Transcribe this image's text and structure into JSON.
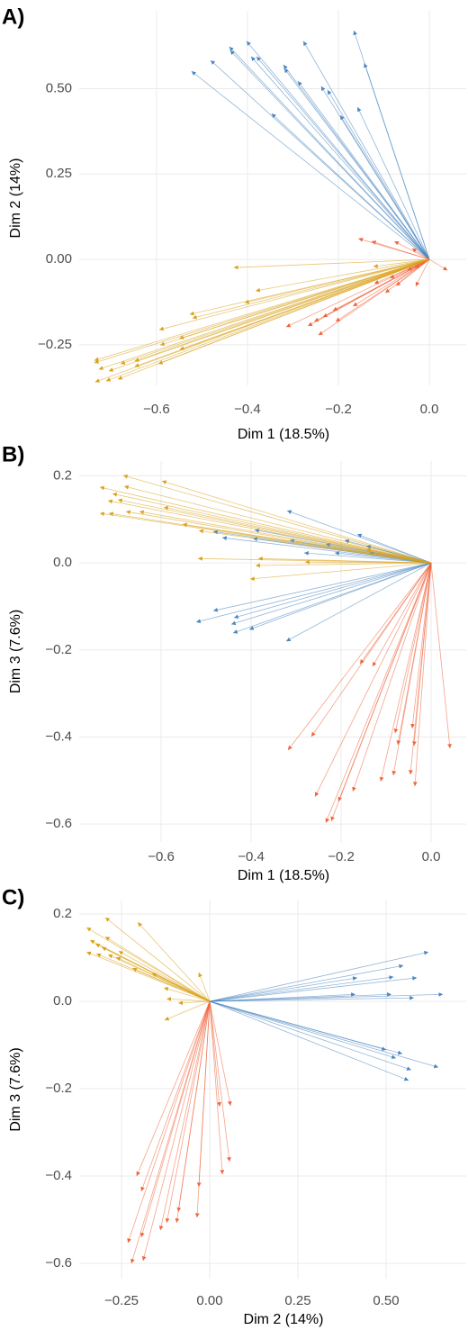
{
  "chart_data": [
    {
      "type": "arrow",
      "title": "A)",
      "x_label": "Dim 1 (18.5%)",
      "y_label": "Dim 2 (14%)",
      "xlim": [
        -0.77,
        0.081
      ],
      "ylim": [
        -0.369,
        0.728
      ],
      "xticks": [
        {
          "value": -0.6,
          "label": "−0.6"
        },
        {
          "value": -0.4,
          "label": "−0.4"
        },
        {
          "value": -0.2,
          "label": "−0.2"
        },
        {
          "value": 0,
          "label": "0.0"
        }
      ],
      "yticks": [
        {
          "value": -0.25,
          "label": "−0.25"
        },
        {
          "value": 0,
          "label": "0.00"
        },
        0.25,
        {
          "value": 0.5,
          "label": "0.50"
        }
      ],
      "grid": true,
      "series": [
        {
          "color": "#4a86c0",
          "x": [
            -0.523,
            -0.481,
            -0.44,
            -0.438,
            -0.402,
            -0.392,
            -0.38,
            -0.347,
            -0.321,
            -0.319,
            -0.277,
            -0.289,
            -0.238,
            -0.224,
            -0.196,
            -0.166,
            -0.158,
            -0.143
          ],
          "values": [
            0.551,
            0.583,
            0.623,
            0.612,
            0.639,
            0.594,
            0.594,
            0.427,
            0.57,
            0.559,
            0.639,
            0.522,
            0.507,
            0.496,
            0.422,
            0.67,
            0.446,
            0.575
          ]
        },
        {
          "color": "#f0643c",
          "x": [
            -0.156,
            -0.127,
            -0.077,
            -0.038,
            -0.032,
            -0.048,
            -0.073,
            -0.097,
            -0.087,
            -0.121,
            -0.168,
            -0.212,
            -0.234,
            -0.206,
            -0.267,
            -0.253,
            -0.244,
            -0.315,
            0.04,
            -0.03
          ],
          "values": [
            0.061,
            0.053,
            0.053,
            0.032,
            -0.026,
            -0.032,
            -0.077,
            -0.098,
            -0.055,
            -0.071,
            -0.137,
            -0.15,
            -0.169,
            -0.182,
            -0.195,
            -0.182,
            -0.222,
            -0.198,
            -0.032,
            -0.079
          ]
        },
        {
          "color": "#d9a21b",
          "x": [
            -0.43,
            -0.123,
            -0.382,
            -0.406,
            -0.527,
            -0.521,
            -0.594,
            -0.55,
            -0.592,
            -0.737,
            -0.705,
            -0.737,
            -0.727,
            -0.679,
            -0.648,
            -0.735,
            -0.711,
            -0.685,
            -0.648,
            -0.596,
            -0.549
          ],
          "values": [
            -0.024,
            -0.021,
            -0.092,
            -0.127,
            -0.161,
            -0.172,
            -0.206,
            -0.232,
            -0.251,
            -0.296,
            -0.327,
            -0.303,
            -0.322,
            -0.306,
            -0.314,
            -0.359,
            -0.356,
            -0.351,
            -0.298,
            -0.306,
            -0.264
          ]
        }
      ]
    },
    {
      "type": "arrow",
      "title": "B)",
      "x_label": "Dim 1 (18.5%)",
      "y_label": "Dim 3 (7.6%)",
      "xlim": [
        -0.782,
        0.078
      ],
      "ylim": [
        -0.641,
        0.234
      ],
      "xticks": [
        {
          "value": -0.6,
          "label": "−0.6"
        },
        {
          "value": -0.4,
          "label": "−0.4"
        },
        {
          "value": -0.2,
          "label": "−0.2"
        },
        {
          "value": 0,
          "label": "0.0"
        }
      ],
      "yticks": [
        {
          "value": -0.6,
          "label": "−0.6"
        },
        {
          "value": -0.4,
          "label": "−0.4"
        },
        {
          "value": -0.2,
          "label": "−0.2"
        },
        {
          "value": 0,
          "label": "0.0"
        },
        0.2
      ],
      "grid": true,
      "series": [
        {
          "color": "#4a86c0",
          "x": [
            -0.32,
            -0.392,
            -0.484,
            -0.464,
            -0.396,
            -0.314,
            -0.282,
            -0.234,
            -0.214,
            -0.192,
            -0.164,
            -0.144,
            -0.138,
            -0.522,
            -0.484,
            -0.444,
            -0.44,
            -0.404,
            -0.322,
            -0.438
          ],
          "values": [
            0.12,
            0.076,
            0.072,
            0.058,
            0.056,
            0.052,
            0.023,
            0.043,
            0.023,
            0.052,
            0.066,
            0.039,
            0.023,
            -0.136,
            -0.11,
            -0.141,
            -0.161,
            -0.153,
            -0.18,
            -0.126
          ]
        },
        {
          "color": "#f0643c",
          "x": [
            -0.318,
            -0.266,
            -0.258,
            -0.234,
            -0.222,
            -0.206,
            -0.174,
            -0.158,
            -0.13,
            -0.112,
            -0.084,
            -0.08,
            -0.074,
            -0.046,
            -0.042,
            -0.038,
            -0.036,
            0.042
          ],
          "values": [
            -0.43,
            -0.399,
            -0.537,
            -0.597,
            -0.593,
            -0.548,
            -0.525,
            -0.232,
            -0.238,
            -0.502,
            -0.488,
            -0.391,
            -0.418,
            -0.486,
            -0.38,
            -0.42,
            -0.513,
            -0.426
          ]
        },
        {
          "color": "#d9a21b",
          "x": [
            -0.736,
            -0.684,
            -0.682,
            -0.708,
            -0.696,
            -0.736,
            -0.716,
            -0.648,
            -0.678,
            -0.598,
            -0.594,
            -0.552,
            -0.516,
            -0.518,
            -0.384,
            -0.39,
            -0.402,
            -0.28,
            -0.144,
            -0.718
          ],
          "values": [
            0.174,
            0.201,
            0.176,
            0.159,
            0.145,
            0.114,
            0.114,
            0.118,
            0.118,
            0.188,
            0.128,
            0.089,
            0.074,
            0.01,
            0.01,
            -0.006,
            -0.037,
            0.002,
            0.031,
            0.143
          ]
        }
      ]
    },
    {
      "type": "arrow",
      "title": "C)",
      "x_label": "Dim 2 (14%)",
      "y_label": "Dim 3 (7.6%)",
      "xlim": [
        -0.37,
        0.727
      ],
      "ylim": [
        -0.635,
        0.231
      ],
      "xticks": [
        {
          "value": -0.25,
          "label": "−0.25"
        },
        {
          "value": 0,
          "label": "0.00"
        },
        0.25,
        {
          "value": 0.5,
          "label": "0.50"
        }
      ],
      "yticks": [
        {
          "value": -0.6,
          "label": "−0.6"
        },
        {
          "value": -0.4,
          "label": "−0.4"
        },
        {
          "value": -0.2,
          "label": "−0.2"
        },
        {
          "value": 0,
          "label": "0.0"
        },
        0.2
      ],
      "grid": true,
      "series": [
        {
          "color": "#4a86c0",
          "x": [
            0.62,
            0.549,
            0.521,
            0.587,
            0.418,
            0.413,
            0.515,
            0.579,
            0.661,
            0.5,
            0.528,
            0.546,
            0.571,
            0.564,
            0.648
          ],
          "values": [
            0.113,
            0.082,
            0.056,
            0.054,
            0.054,
            0.016,
            0.016,
            0.008,
            0.016,
            -0.111,
            -0.13,
            -0.12,
            -0.157,
            -0.181,
            -0.151
          ]
        },
        {
          "color": "#f0643c",
          "x": [
            -0.207,
            -0.194,
            -0.232,
            -0.222,
            -0.189,
            -0.194,
            -0.14,
            -0.122,
            -0.094,
            -0.089,
            -0.036,
            -0.031,
            0.028,
            0.059,
            0.036,
            0.056
          ],
          "values": [
            -0.4,
            -0.435,
            -0.553,
            -0.6,
            -0.594,
            -0.54,
            -0.524,
            -0.507,
            -0.507,
            -0.482,
            -0.495,
            -0.425,
            -0.241,
            -0.239,
            -0.396,
            -0.367
          ]
        },
        {
          "color": "#d9a21b",
          "x": [
            -0.349,
            -0.296,
            -0.339,
            -0.349,
            -0.321,
            -0.306,
            -0.288,
            -0.265,
            -0.258,
            -0.296,
            -0.219,
            -0.204,
            -0.163,
            -0.122,
            -0.128,
            -0.089,
            -0.031,
            -0.13,
            -0.324
          ],
          "values": [
            0.169,
            0.192,
            0.14,
            0.113,
            0.109,
            0.124,
            0.107,
            0.101,
            0.115,
            0.148,
            0.076,
            0.181,
            0.064,
            0.006,
            -0.043,
            -0.004,
            0.066,
            0.031,
            0.132
          ]
        }
      ]
    }
  ]
}
